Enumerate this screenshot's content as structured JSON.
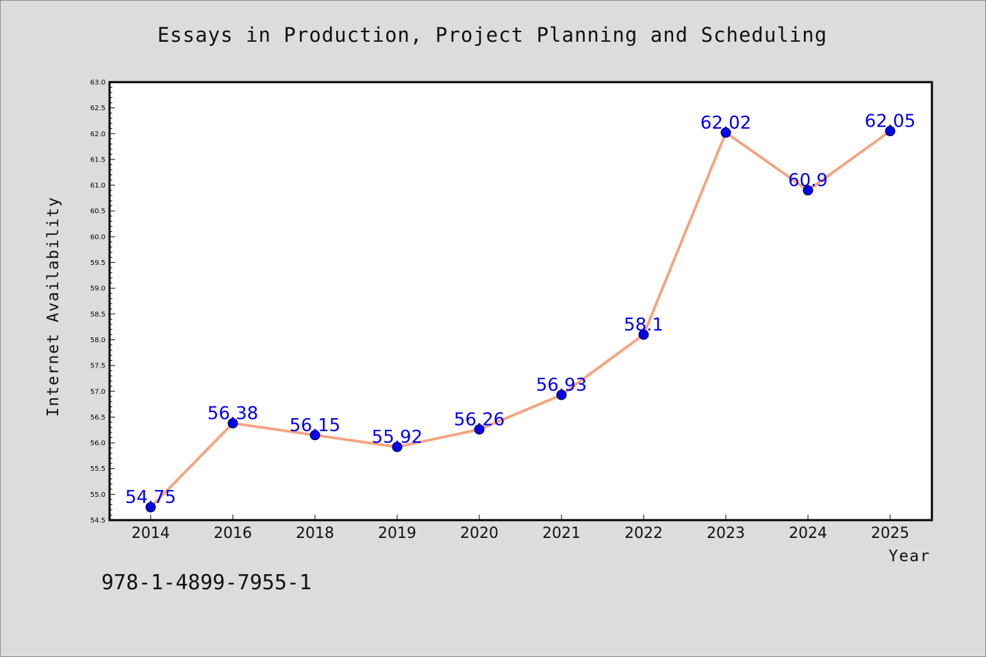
{
  "chart_data": {
    "type": "line",
    "title": "Essays in Production, Project Planning and Scheduling",
    "xlabel": "Year",
    "ylabel": "Internet Availability",
    "categories": [
      "2014",
      "2016",
      "2018",
      "2019",
      "2020",
      "2021",
      "2022",
      "2023",
      "2024",
      "2025"
    ],
    "series": [
      {
        "values": [
          54.75,
          56.38,
          56.15,
          55.92,
          56.26,
          56.93,
          58.1,
          62.02,
          60.9,
          62.05
        ],
        "labels": [
          "54.75",
          "56.38",
          "56.15",
          "55.92",
          "56.26",
          "56.93",
          "58.1",
          "62.02",
          "60.9",
          "62.05"
        ]
      }
    ],
    "ylim": [
      54.5,
      63.0
    ],
    "yticks": [
      "54.5",
      "55.0",
      "55.5",
      "56.0",
      "56.5",
      "57.0",
      "57.5",
      "58.0",
      "58.5",
      "59.0",
      "59.5",
      "60.0",
      "60.5",
      "61.0",
      "61.5",
      "62.0",
      "62.5",
      "63.0"
    ],
    "grid": false,
    "legend": "none",
    "colors": {
      "line": "#f4a582",
      "marker": "#0000ee",
      "label": "#0000ee",
      "background": "#dcdcdc",
      "plot_background": "#ffffff"
    }
  },
  "annotation": "978-1-4899-7955-1"
}
